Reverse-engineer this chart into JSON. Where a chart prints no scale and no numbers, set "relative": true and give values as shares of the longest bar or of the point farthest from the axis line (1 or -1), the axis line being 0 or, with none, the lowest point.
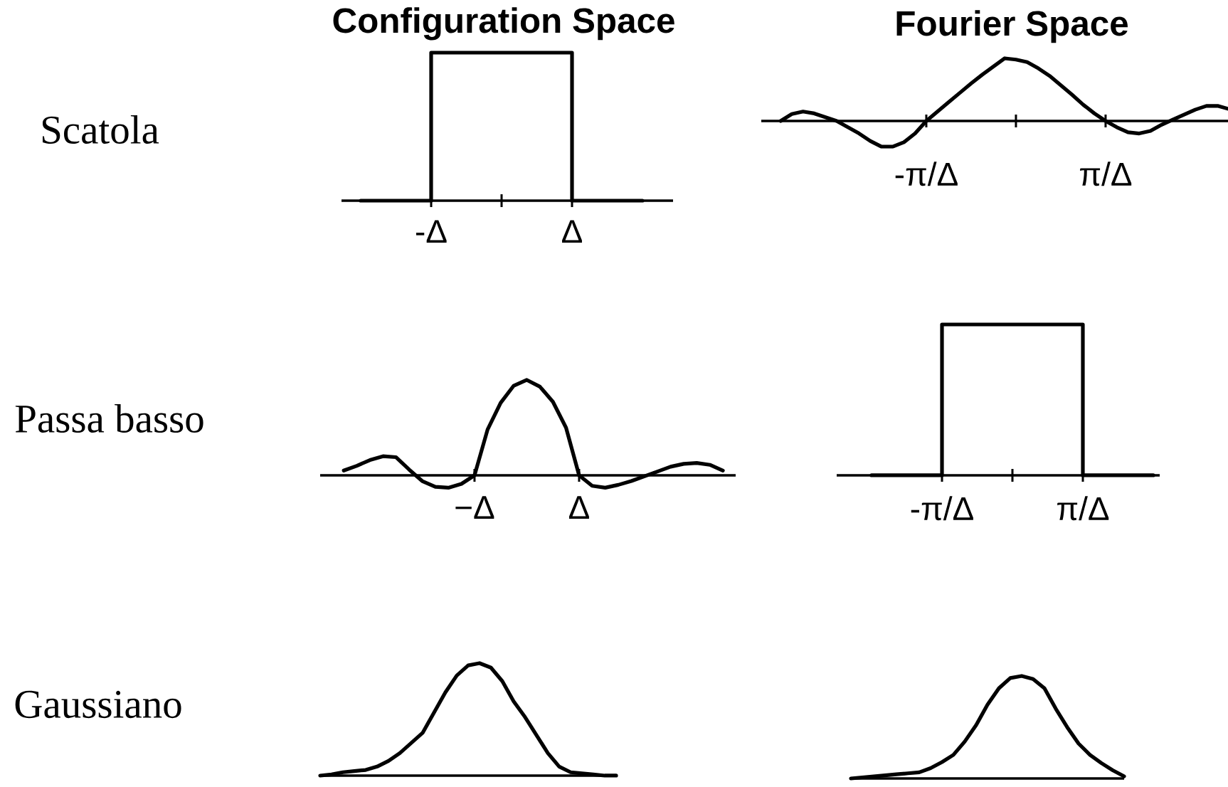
{
  "chart_data": [
    {
      "type": "step",
      "title": "Configuration Space",
      "ylabel": "Scatola",
      "relative": true,
      "tick_labels": "x",
      "color": "#000000",
      "categories": [
        null,
        "-Δ",
        null,
        "Δ",
        null
      ],
      "values": [
        0,
        1,
        1,
        0,
        0
      ]
    },
    {
      "type": "line",
      "title": "Fourier Space",
      "relative": true,
      "tick_labels": "x",
      "color": "#000000",
      "categories": [
        null,
        null,
        null,
        null,
        null,
        null,
        null,
        null,
        null,
        null,
        null,
        null,
        null,
        "-π/Δ",
        null,
        null,
        null,
        null,
        null,
        null,
        null,
        null,
        null,
        null,
        null,
        null,
        null,
        null,
        null,
        "π/Δ",
        null,
        null,
        null,
        null,
        null,
        null,
        null,
        null,
        null,
        null,
        null
      ],
      "values": [
        0,
        0.11,
        0.15,
        0.12,
        0.06,
        0,
        -0.1,
        -0.2,
        -0.32,
        -0.41,
        -0.41,
        -0.34,
        -0.2,
        0,
        0.15,
        0.3,
        0.45,
        0.6,
        0.74,
        0.87,
        1,
        0.98,
        0.94,
        0.84,
        0.72,
        0.57,
        0.42,
        0.26,
        0.12,
        0,
        -0.1,
        -0.18,
        -0.2,
        -0.16,
        -0.06,
        0.02,
        0.1,
        0.18,
        0.24,
        0.24,
        0.19
      ]
    },
    {
      "type": "line",
      "ylabel": "Passa basso",
      "relative": true,
      "tick_labels": "x",
      "color": "#000000",
      "categories": [
        null,
        null,
        null,
        null,
        null,
        null,
        null,
        null,
        null,
        null,
        "−Δ",
        null,
        null,
        null,
        null,
        null,
        null,
        null,
        "Δ",
        null,
        null,
        null,
        null,
        null,
        null,
        null,
        null,
        null,
        null,
        null
      ],
      "values": [
        0.05,
        0.1,
        0.16,
        0.2,
        0.19,
        0.06,
        -0.06,
        -0.12,
        -0.13,
        -0.09,
        0,
        0.48,
        0.76,
        0.94,
        1,
        0.93,
        0.77,
        0.5,
        0,
        -0.11,
        -0.13,
        -0.1,
        -0.06,
        -0.01,
        0.04,
        0.09,
        0.12,
        0.13,
        0.11,
        0.05
      ]
    },
    {
      "type": "step",
      "relative": true,
      "tick_labels": "x",
      "color": "#000000",
      "categories": [
        null,
        "-π/Δ",
        null,
        "π/Δ",
        null
      ],
      "values": [
        0,
        1,
        1,
        0,
        0
      ]
    },
    {
      "type": "line",
      "ylabel": "Gaussiano",
      "relative": true,
      "tick_labels": false,
      "color": "#000000",
      "categories": [
        null,
        null,
        null,
        null,
        null,
        null,
        null,
        null,
        null,
        null,
        null,
        null,
        null,
        null,
        null,
        null,
        null,
        null,
        null,
        null,
        null,
        null,
        null,
        null,
        null,
        null,
        null
      ],
      "values": [
        0,
        0.01,
        0.03,
        0.04,
        0.05,
        0.08,
        0.13,
        0.2,
        0.29,
        0.38,
        0.56,
        0.74,
        0.89,
        0.98,
        1,
        0.96,
        0.84,
        0.66,
        0.52,
        0.36,
        0.2,
        0.08,
        0.03,
        0.02,
        0.01,
        0,
        0
      ]
    },
    {
      "type": "line",
      "relative": true,
      "tick_labels": false,
      "color": "#000000",
      "categories": [
        null,
        null,
        null,
        null,
        null,
        null,
        null,
        null,
        null,
        null,
        null,
        null,
        null,
        null,
        null,
        null,
        null,
        null,
        null,
        null,
        null,
        null,
        null,
        null,
        null
      ],
      "values": [
        0,
        0.01,
        0.02,
        0.03,
        0.04,
        0.05,
        0.06,
        0.1,
        0.16,
        0.23,
        0.36,
        0.52,
        0.72,
        0.88,
        0.98,
        1,
        0.97,
        0.88,
        0.68,
        0.5,
        0.34,
        0.23,
        0.15,
        0.08,
        0.02
      ]
    }
  ]
}
